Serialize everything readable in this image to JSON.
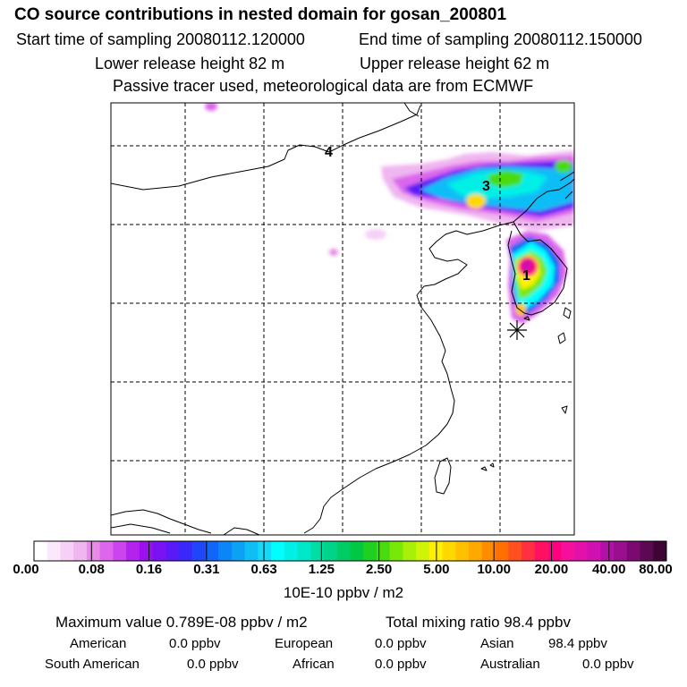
{
  "header": {
    "title": "CO  source contributions in nested domain for gosan_200801",
    "start_label": "Start time of sampling 20080112.120000",
    "end_label": "End time of sampling 20080112.150000",
    "lower_label": "Lower release height   82 m",
    "upper_label": "Upper release height   62 m",
    "note": "Passive tracer used, meteorological data are from ECMWF"
  },
  "map": {
    "source_markers": [
      "1",
      "3",
      "4"
    ],
    "receptor_icon": "asterisk-receptor-icon"
  },
  "colorbar": {
    "labels": [
      "0.00",
      "0.08",
      "0.16",
      "0.31",
      "0.63",
      "1.25",
      "2.50",
      "5.00",
      "10.00",
      "20.00",
      "40.00",
      "80.00"
    ],
    "colors": [
      "#ffffff",
      "#fbe8fb",
      "#f6d0f6",
      "#f0b6f0",
      "#e88ae8",
      "#dc66ec",
      "#cc44ee",
      "#b422ee",
      "#9a10ee",
      "#7a12f4",
      "#5a1af8",
      "#3a28fa",
      "#2046fa",
      "#1066f8",
      "#0c86f6",
      "#0ca2f4",
      "#10bef6",
      "#18d8f8",
      "#00fefe",
      "#00f0e6",
      "#00e8c8",
      "#00dea8",
      "#00d488",
      "#00cc66",
      "#00c844",
      "#20d020",
      "#48dc10",
      "#78e808",
      "#a8f008",
      "#d0f408",
      "#fff000",
      "#ffd800",
      "#ffc000",
      "#ffa800",
      "#ff8c00",
      "#ff7000",
      "#ff5020",
      "#ff3040",
      "#ff1060",
      "#ff0080",
      "#f4109a",
      "#e410aa",
      "#d010b0",
      "#b410a8",
      "#98108e",
      "#7a0a70",
      "#5c0852",
      "#3e0434"
    ],
    "units": "10E-10 ppbv / m2"
  },
  "summary": {
    "max_label": "Maximum value  0.789E-08 ppbv / m2",
    "total_label": "Total mixing ratio       98.4 ppbv"
  },
  "regions": [
    {
      "name": "American",
      "value": "0.0 ppbv"
    },
    {
      "name": "European",
      "value": "0.0 ppbv"
    },
    {
      "name": "Asian",
      "value": "98.4 ppbv"
    },
    {
      "name": "South American",
      "value": "0.0 ppbv"
    },
    {
      "name": "African",
      "value": "0.0 ppbv"
    },
    {
      "name": "Australian",
      "value": "0.0 ppbv"
    }
  ]
}
